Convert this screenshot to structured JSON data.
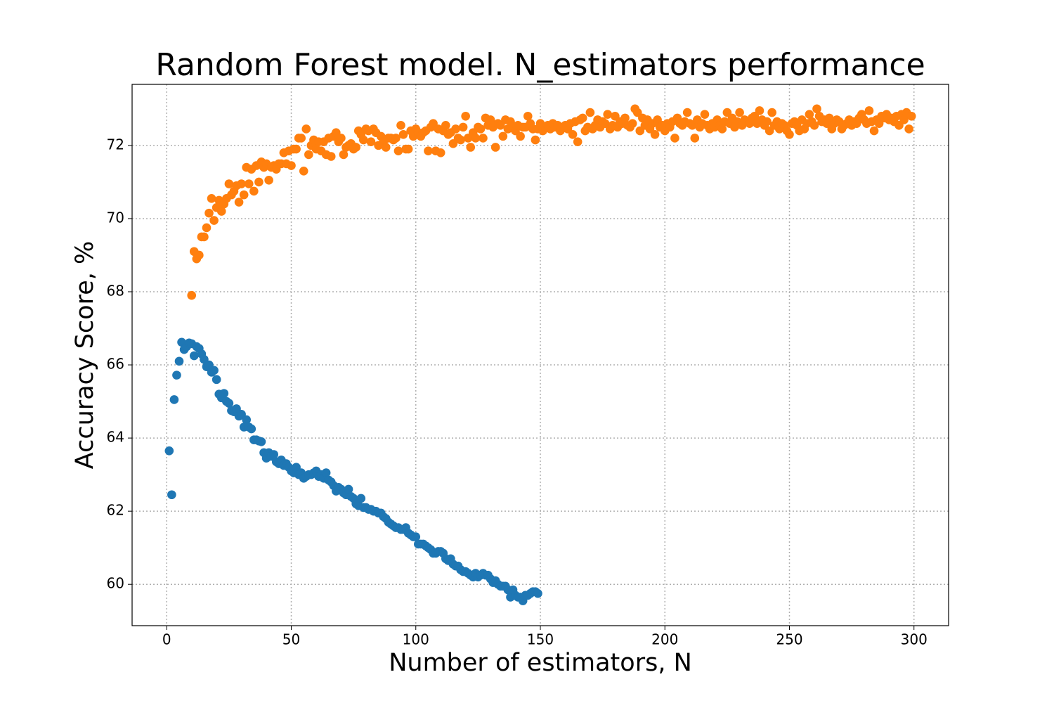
{
  "chart_data": {
    "type": "scatter",
    "title": "Random Forest model. N_estimators performance",
    "xlabel": "Number of estimators, N",
    "ylabel": "Accuracy Score, %",
    "xlim": [
      -13.9,
      313.9
    ],
    "ylim": [
      58.87,
      73.67
    ],
    "xticks": [
      0,
      50,
      100,
      150,
      200,
      250,
      300
    ],
    "yticks": [
      60,
      62,
      64,
      66,
      68,
      70,
      72
    ],
    "grid": true,
    "series": [
      {
        "color": "#1f77b4",
        "x": [
          1,
          2,
          3,
          4,
          5,
          6,
          7,
          8,
          9,
          10,
          11,
          12,
          13,
          14,
          15,
          16,
          17,
          18,
          19,
          20,
          21,
          22,
          23,
          24,
          25,
          26,
          27,
          28,
          29,
          30,
          31,
          32,
          33,
          34,
          35,
          36,
          37,
          38,
          39,
          40,
          41,
          42,
          43,
          44,
          45,
          46,
          47,
          48,
          49,
          50,
          51,
          52,
          53,
          54,
          55,
          56,
          57,
          58,
          59,
          60,
          61,
          62,
          63,
          64,
          65,
          66,
          67,
          68,
          69,
          70,
          71,
          72,
          73,
          74,
          75,
          76,
          77,
          78,
          79,
          80,
          81,
          82,
          83,
          84,
          85,
          86,
          87,
          88,
          89,
          90,
          91,
          92,
          93,
          94,
          95,
          96,
          97,
          98,
          99,
          100,
          101,
          102,
          103,
          104,
          105,
          106,
          107,
          108,
          109,
          110,
          111,
          112,
          113,
          114,
          115,
          116,
          117,
          118,
          119,
          120,
          121,
          122,
          123,
          124,
          125,
          126,
          127,
          128,
          129,
          130,
          131,
          132,
          133,
          134,
          135,
          136,
          137,
          138,
          139,
          140,
          141,
          142,
          143,
          144,
          145,
          146,
          147,
          148,
          149
        ],
        "values": [
          63.65,
          62.45,
          65.05,
          65.72,
          66.1,
          66.62,
          66.42,
          66.5,
          66.6,
          66.58,
          66.25,
          66.5,
          66.45,
          66.3,
          66.15,
          65.95,
          66.0,
          65.8,
          65.85,
          65.6,
          65.2,
          65.1,
          65.22,
          65.0,
          64.95,
          64.75,
          64.72,
          64.8,
          64.6,
          64.65,
          64.3,
          64.5,
          64.3,
          64.25,
          63.95,
          63.95,
          63.92,
          63.9,
          63.6,
          63.45,
          63.6,
          63.5,
          63.55,
          63.35,
          63.3,
          63.4,
          63.25,
          63.3,
          63.2,
          63.1,
          63.05,
          63.2,
          63.0,
          63.05,
          62.9,
          62.95,
          63.0,
          63.0,
          63.05,
          63.1,
          62.95,
          63.0,
          62.9,
          63.05,
          62.85,
          62.8,
          62.7,
          62.55,
          62.65,
          62.6,
          62.5,
          62.45,
          62.6,
          62.4,
          62.35,
          62.2,
          62.15,
          62.35,
          62.1,
          62.1,
          62.05,
          62.05,
          62.0,
          62.0,
          61.95,
          61.95,
          61.85,
          61.8,
          61.7,
          61.65,
          61.6,
          61.55,
          61.55,
          61.5,
          61.5,
          61.55,
          61.4,
          61.35,
          61.3,
          61.3,
          61.1,
          61.1,
          61.1,
          61.05,
          61.0,
          60.95,
          60.85,
          60.85,
          60.9,
          60.9,
          60.85,
          60.7,
          60.65,
          60.7,
          60.55,
          60.5,
          60.5,
          60.4,
          60.35,
          60.35,
          60.3,
          60.25,
          60.2,
          60.3,
          60.2,
          60.25,
          60.3,
          60.25,
          60.25,
          60.15,
          60.05,
          60.1,
          60.0,
          59.95,
          59.95,
          59.95,
          59.85,
          59.65,
          59.85,
          59.7,
          59.65,
          59.65,
          59.55,
          59.7,
          59.7,
          59.75,
          59.8,
          59.8,
          59.75
        ]
      },
      {
        "color": "#ff7f0e",
        "x": [
          10,
          11,
          12,
          13,
          14,
          15,
          16,
          17,
          18,
          19,
          20,
          21,
          22,
          23,
          24,
          25,
          26,
          27,
          28,
          29,
          30,
          31,
          32,
          33,
          34,
          35,
          36,
          37,
          38,
          39,
          40,
          41,
          42,
          43,
          44,
          45,
          46,
          47,
          48,
          49,
          50,
          51,
          52,
          53,
          54,
          55,
          56,
          57,
          58,
          59,
          60,
          61,
          62,
          63,
          64,
          65,
          66,
          67,
          68,
          69,
          70,
          71,
          72,
          73,
          74,
          75,
          76,
          77,
          78,
          79,
          80,
          81,
          82,
          83,
          84,
          85,
          86,
          87,
          88,
          89,
          90,
          91,
          92,
          93,
          94,
          95,
          96,
          97,
          98,
          99,
          100,
          101,
          102,
          103,
          104,
          105,
          106,
          107,
          108,
          109,
          110,
          111,
          112,
          113,
          114,
          115,
          116,
          117,
          118,
          119,
          120,
          121,
          122,
          123,
          124,
          125,
          126,
          127,
          128,
          129,
          130,
          131,
          132,
          133,
          134,
          135,
          136,
          137,
          138,
          139,
          140,
          141,
          142,
          143,
          144,
          145,
          146,
          147,
          148,
          149,
          150,
          151,
          152,
          153,
          154,
          155,
          156,
          157,
          158,
          159,
          160,
          161,
          162,
          163,
          164,
          165,
          166,
          167,
          168,
          169,
          170,
          171,
          172,
          173,
          174,
          175,
          176,
          177,
          178,
          179,
          180,
          181,
          182,
          183,
          184,
          185,
          186,
          187,
          188,
          189,
          190,
          191,
          192,
          193,
          194,
          195,
          196,
          197,
          198,
          199,
          200,
          201,
          202,
          203,
          204,
          205,
          206,
          207,
          208,
          209,
          210,
          211,
          212,
          213,
          214,
          215,
          216,
          217,
          218,
          219,
          220,
          221,
          222,
          223,
          224,
          225,
          226,
          227,
          228,
          229,
          230,
          231,
          232,
          233,
          234,
          235,
          236,
          237,
          238,
          239,
          240,
          241,
          242,
          243,
          244,
          245,
          246,
          247,
          248,
          249,
          250,
          251,
          252,
          253,
          254,
          255,
          256,
          257,
          258,
          259,
          260,
          261,
          262,
          263,
          264,
          265,
          266,
          267,
          268,
          269,
          270,
          271,
          272,
          273,
          274,
          275,
          276,
          277,
          278,
          279,
          280,
          281,
          282,
          283,
          284,
          285,
          286,
          287,
          288,
          289,
          290,
          291,
          292,
          293,
          294,
          295,
          296,
          297,
          298,
          299
        ],
        "values": [
          67.9,
          69.1,
          68.9,
          69.0,
          69.5,
          69.5,
          69.75,
          70.15,
          70.55,
          69.95,
          70.3,
          70.5,
          70.2,
          70.4,
          70.55,
          70.95,
          70.65,
          70.75,
          70.9,
          70.45,
          70.95,
          70.65,
          71.4,
          70.95,
          71.35,
          70.75,
          71.45,
          71.0,
          71.55,
          71.4,
          71.5,
          71.05,
          71.4,
          71.45,
          71.35,
          71.5,
          71.5,
          71.8,
          71.5,
          71.85,
          71.45,
          71.9,
          71.9,
          72.2,
          72.2,
          71.3,
          72.45,
          71.75,
          72.0,
          72.15,
          71.9,
          72.1,
          71.85,
          72.1,
          71.75,
          72.2,
          71.7,
          72.25,
          72.35,
          72.1,
          72.2,
          71.75,
          71.95,
          72.0,
          72.05,
          71.9,
          71.95,
          72.4,
          72.3,
          72.15,
          72.45,
          72.4,
          72.1,
          72.45,
          72.35,
          72.0,
          72.25,
          72.1,
          71.95,
          72.2,
          72.2,
          72.15,
          72.2,
          71.85,
          72.55,
          72.3,
          71.9,
          71.9,
          72.4,
          72.25,
          72.45,
          72.35,
          72.25,
          72.35,
          72.4,
          71.85,
          72.5,
          72.6,
          71.85,
          72.45,
          71.8,
          72.4,
          72.55,
          72.3,
          72.35,
          72.05,
          72.45,
          72.2,
          72.15,
          72.5,
          72.8,
          72.2,
          71.95,
          72.35,
          72.2,
          72.5,
          72.45,
          72.2,
          72.75,
          72.55,
          72.7,
          72.5,
          71.95,
          72.6,
          72.55,
          72.25,
          72.7,
          72.45,
          72.65,
          72.5,
          72.4,
          72.55,
          72.25,
          72.5,
          72.5,
          72.8,
          72.6,
          72.45,
          72.15,
          72.45,
          72.6,
          72.4,
          72.5,
          72.55,
          72.45,
          72.6,
          72.5,
          72.55,
          72.4,
          72.5,
          72.55,
          72.45,
          72.6,
          72.3,
          72.65,
          72.1,
          72.7,
          72.75,
          72.4,
          72.5,
          72.9,
          72.45,
          72.55,
          72.7,
          72.5,
          72.65,
          72.6,
          72.85,
          72.45,
          72.55,
          72.8,
          72.5,
          72.65,
          72.6,
          72.75,
          72.55,
          72.5,
          72.6,
          73.0,
          72.9,
          72.4,
          72.75,
          72.55,
          72.7,
          72.45,
          72.6,
          72.3,
          72.7,
          72.5,
          72.55,
          72.4,
          72.6,
          72.5,
          72.65,
          72.2,
          72.75,
          72.6,
          72.55,
          72.65,
          72.9,
          72.6,
          72.55,
          72.2,
          72.7,
          72.5,
          72.6,
          72.85,
          72.55,
          72.45,
          72.6,
          72.5,
          72.7,
          72.55,
          72.45,
          72.65,
          72.9,
          72.6,
          72.75,
          72.5,
          72.65,
          72.9,
          72.55,
          72.7,
          72.65,
          72.6,
          72.75,
          72.8,
          72.6,
          72.95,
          72.7,
          72.55,
          72.65,
          72.4,
          72.9,
          72.55,
          72.65,
          72.45,
          72.6,
          72.55,
          72.4,
          72.3,
          72.6,
          72.65,
          72.55,
          72.4,
          72.7,
          72.45,
          72.6,
          72.85,
          72.65,
          72.55,
          73.0,
          72.8,
          72.65,
          72.7,
          72.6,
          72.75,
          72.45,
          72.6,
          72.7,
          72.65,
          72.45,
          72.55,
          72.6,
          72.7,
          72.55,
          72.65,
          72.6,
          72.75,
          72.85,
          72.7,
          72.6,
          72.95,
          72.65,
          72.4,
          72.7,
          72.6,
          72.8,
          72.75,
          72.85,
          72.7,
          72.75,
          72.65,
          72.8,
          72.55,
          72.85,
          72.7,
          72.9,
          72.45,
          72.8
        ]
      }
    ]
  }
}
